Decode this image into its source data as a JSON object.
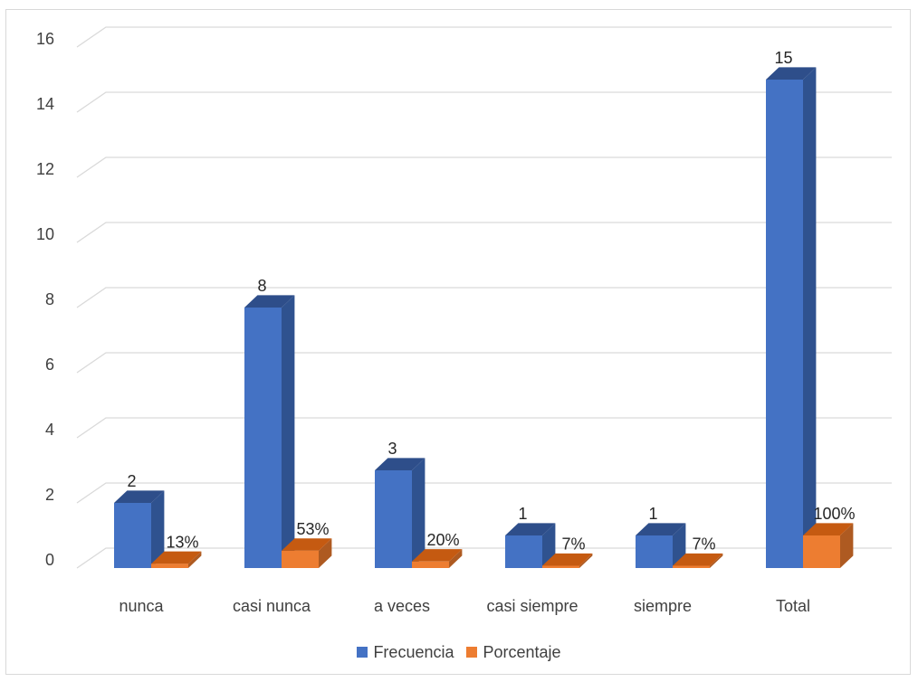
{
  "chart_data": {
    "type": "bar",
    "categories": [
      "nunca",
      "casi nunca",
      "a veces",
      "casi siempre",
      "siempre",
      "Total"
    ],
    "series": [
      {
        "name": "Frecuencia",
        "values": [
          2,
          8,
          3,
          1,
          1,
          15
        ],
        "labels": [
          "2",
          "8",
          "3",
          "1",
          "1",
          "15"
        ],
        "color": "#4472C4",
        "side_color": "#2F528F",
        "top_color": "#2E4E8A"
      },
      {
        "name": "Porcentaje",
        "values": [
          0.13,
          0.53,
          0.2,
          0.07,
          0.07,
          1.0
        ],
        "labels": [
          "13%",
          "53%",
          "20%",
          "7%",
          "7%",
          "100%"
        ],
        "color": "#ED7D31",
        "side_color": "#AE5A21",
        "top_color": "#C55A11"
      }
    ],
    "yticks": [
      "0",
      "2",
      "4",
      "6",
      "8",
      "10",
      "12",
      "14",
      "16"
    ],
    "ylim": [
      0,
      16
    ],
    "grid": true,
    "legend": "bottom",
    "title": "",
    "xlabel": "",
    "ylabel": ""
  }
}
